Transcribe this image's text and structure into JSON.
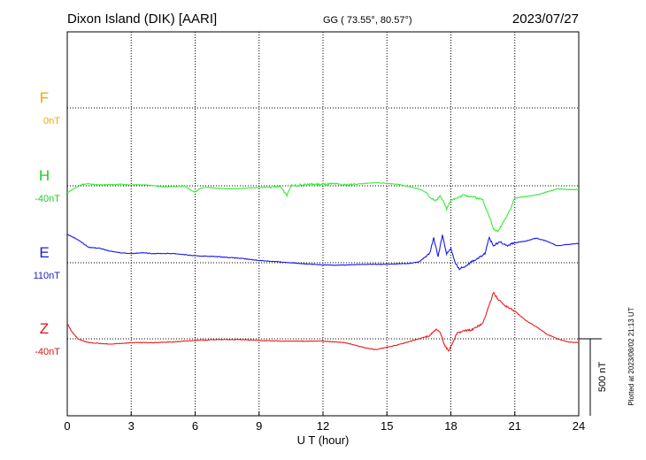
{
  "header": {
    "station": "Dixon Island (DIK)  [AARI]",
    "coords": "GG ( 73.55°,  80.57°)",
    "date": "2023/07/27"
  },
  "plotted_note": "Plotted at 2023/08/02 21:13 UT",
  "chart_data": {
    "type": "line",
    "xlabel": "U T (hour)",
    "xlim": [
      0,
      24
    ],
    "xticks": [
      0,
      3,
      6,
      9,
      12,
      15,
      18,
      21,
      24
    ],
    "xtick_labels": [
      "0",
      "3",
      "6",
      "9",
      "12",
      "15",
      "18",
      "21",
      "24"
    ],
    "scale_bar_label": "500 nT",
    "scale_bar_nT": 500,
    "grid": true,
    "series": [
      {
        "name": "F",
        "baseline_label": "0nT",
        "color": "#f0a800",
        "label_color": "#f0a800",
        "x": [],
        "values": []
      },
      {
        "name": "H",
        "baseline_label": "-40nT",
        "color": "#33ee33",
        "label_color": "#22cc22",
        "x": [
          0,
          0.3,
          0.7,
          1.0,
          1.5,
          2.0,
          2.5,
          3.0,
          3.5,
          4.0,
          4.5,
          5.0,
          5.5,
          5.8,
          6.0,
          6.2,
          6.5,
          7.0,
          7.5,
          8.0,
          8.5,
          9.0,
          9.5,
          10.0,
          10.3,
          10.5,
          11.0,
          11.5,
          12.0,
          12.5,
          13.0,
          13.5,
          14.0,
          14.5,
          15.0,
          15.5,
          16.0,
          16.5,
          16.8,
          17.0,
          17.3,
          17.5,
          17.8,
          18.0,
          18.3,
          18.6,
          19.0,
          19.5,
          19.8,
          20.0,
          20.2,
          20.4,
          20.6,
          20.8,
          21.0,
          21.5,
          22.0,
          22.5,
          23.0,
          23.5,
          24.0
        ],
        "values": [
          -45,
          -20,
          10,
          12,
          6,
          8,
          10,
          5,
          7,
          2,
          -8,
          -5,
          -2,
          -28,
          -42,
          -20,
          -10,
          -15,
          -20,
          -18,
          -14,
          -12,
          -8,
          -5,
          -60,
          0,
          5,
          10,
          8,
          12,
          5,
          10,
          15,
          20,
          15,
          10,
          -5,
          -20,
          -40,
          -70,
          -100,
          -60,
          -150,
          -90,
          -80,
          -60,
          -70,
          -90,
          -200,
          -280,
          -300,
          -250,
          -200,
          -150,
          -80,
          -70,
          -60,
          -40,
          -20,
          -25,
          -25
        ]
      },
      {
        "name": "E",
        "baseline_label": "110nT",
        "color": "#1a1aee",
        "label_color": "#1a1ad6",
        "x": [
          0,
          0.5,
          1.0,
          1.5,
          2.0,
          2.5,
          3.0,
          3.5,
          4.0,
          5.0,
          6.0,
          7.0,
          8.0,
          9.0,
          10.0,
          11.0,
          12.0,
          13.0,
          14.0,
          15.0,
          16.0,
          16.5,
          17.0,
          17.2,
          17.4,
          17.6,
          17.8,
          18.0,
          18.2,
          18.4,
          18.7,
          19.0,
          19.3,
          19.6,
          19.8,
          20.0,
          20.3,
          20.6,
          21.0,
          21.5,
          22.0,
          22.5,
          23.0,
          23.5,
          24.0
        ],
        "values": [
          185,
          150,
          100,
          95,
          75,
          65,
          60,
          65,
          60,
          60,
          45,
          40,
          30,
          15,
          5,
          -5,
          -15,
          -15,
          -10,
          -10,
          -5,
          5,
          60,
          160,
          40,
          180,
          60,
          90,
          0,
          -40,
          -20,
          10,
          30,
          60,
          160,
          110,
          140,
          110,
          130,
          140,
          160,
          140,
          110,
          120,
          125
        ]
      },
      {
        "name": "Z",
        "baseline_label": "-40nT",
        "color": "#ee1a1a",
        "label_color": "#dd1111",
        "x": [
          0,
          0.2,
          0.5,
          1.0,
          1.5,
          2.0,
          2.5,
          3.0,
          4.0,
          5.0,
          6.0,
          7.0,
          8.0,
          9.0,
          10.0,
          11.0,
          12.0,
          13.0,
          13.5,
          14.0,
          14.5,
          15.0,
          15.5,
          16.0,
          16.5,
          17.0,
          17.3,
          17.5,
          17.7,
          17.9,
          18.1,
          18.3,
          18.6,
          19.0,
          19.5,
          19.8,
          20.0,
          20.2,
          20.5,
          21.0,
          21.5,
          22.0,
          22.5,
          23.0,
          23.5,
          24.0
        ],
        "values": [
          100,
          50,
          0,
          -25,
          -30,
          -35,
          -30,
          -25,
          -25,
          -20,
          -10,
          -5,
          -5,
          -10,
          -15,
          -15,
          -15,
          -25,
          -40,
          -60,
          -70,
          -55,
          -40,
          -20,
          0,
          20,
          60,
          40,
          -40,
          -80,
          -20,
          40,
          50,
          60,
          100,
          220,
          300,
          260,
          220,
          180,
          120,
          80,
          30,
          0,
          -20,
          -25
        ]
      }
    ]
  }
}
